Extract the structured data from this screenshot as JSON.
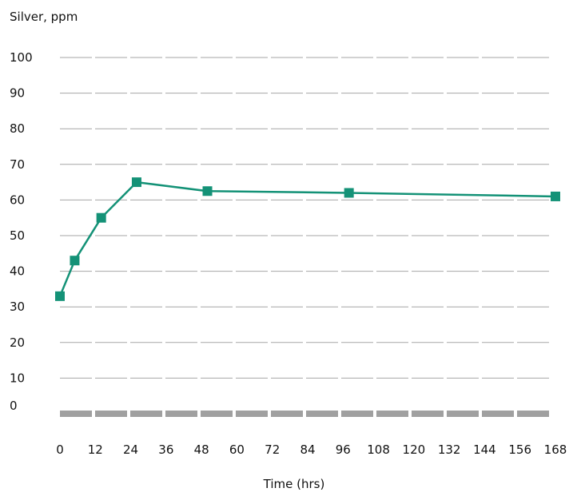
{
  "chart_data": {
    "type": "line",
    "ylabel": "Silver, ppm",
    "xlabel": "Time (hrs)",
    "ylim": [
      0,
      100
    ],
    "xlim": [
      0,
      168
    ],
    "y_ticks": [
      "100",
      "90",
      "80",
      "70",
      "60",
      "50",
      "40",
      "30",
      "20",
      "10",
      "0"
    ],
    "x_ticks": [
      "0",
      "12",
      "24",
      "36",
      "48",
      "60",
      "72",
      "84",
      "96",
      "108",
      "120",
      "132",
      "144",
      "156",
      "168"
    ],
    "grid": "dashed horizontal lines",
    "series": [
      {
        "marker": "square",
        "color": "#149277",
        "x": [
          0,
          5,
          14,
          26,
          50,
          98,
          168
        ],
        "y": [
          33,
          43,
          55,
          65,
          62.5,
          62,
          61
        ]
      }
    ]
  },
  "colors": {
    "grid": "#a6a6a6",
    "baseline": "#a0a0a0",
    "series": "#149277"
  }
}
